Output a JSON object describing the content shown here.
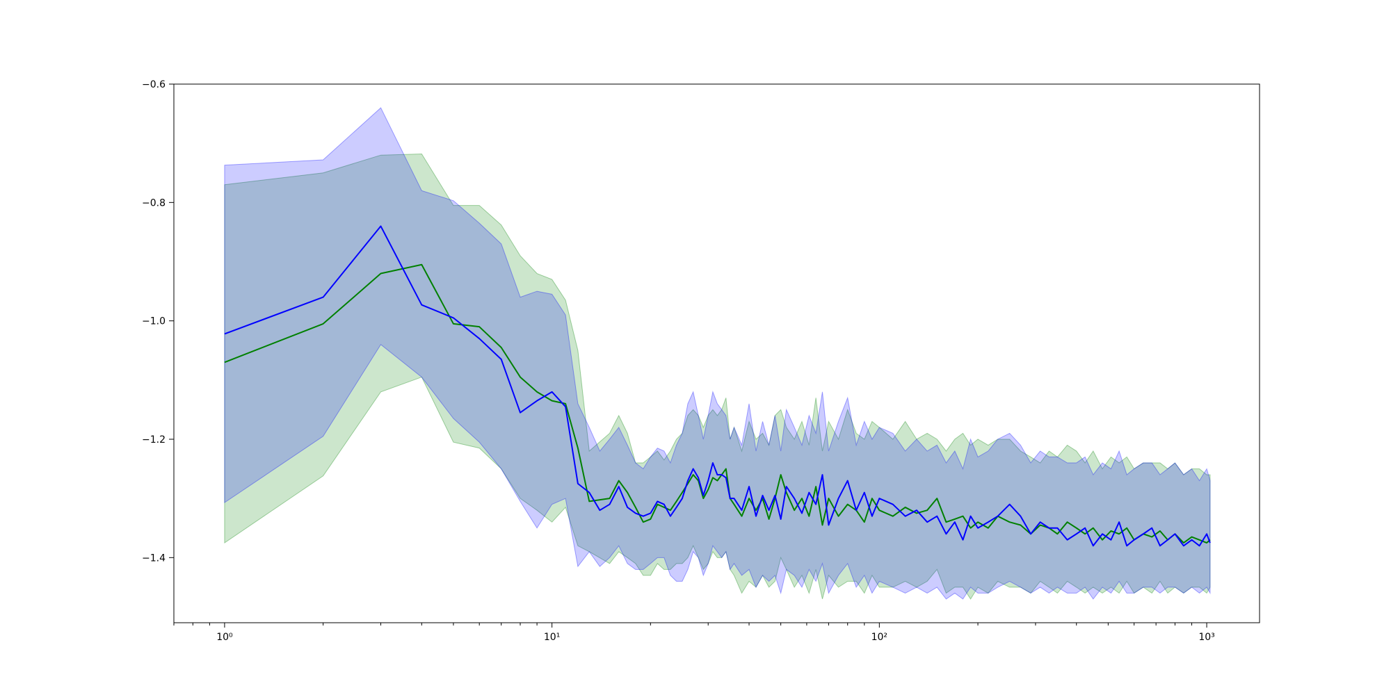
{
  "chart_data": {
    "type": "line",
    "title": "",
    "xlabel": "",
    "ylabel": "",
    "xscale": "log",
    "xlim": [
      0.7,
      1450
    ],
    "ylim": [
      -1.51,
      -0.6
    ],
    "grid": false,
    "x_ticks": [
      {
        "value": 1,
        "label": "10⁰"
      },
      {
        "value": 10,
        "label": "10¹"
      },
      {
        "value": 100,
        "label": "10²"
      },
      {
        "value": 1000,
        "label": "10³"
      }
    ],
    "y_ticks": [
      {
        "value": -0.6,
        "label": "−0.6"
      },
      {
        "value": -0.8,
        "label": "−0.8"
      },
      {
        "value": -1.0,
        "label": "−1.0"
      },
      {
        "value": -1.2,
        "label": "−1.2"
      },
      {
        "value": -1.4,
        "label": "−1.4"
      }
    ],
    "series": [
      {
        "color": "#008000",
        "band_color": "#008000",
        "band_opacity": 0.2,
        "x": [
          1,
          2,
          3,
          4,
          5,
          6,
          7,
          8,
          9,
          10,
          11,
          12,
          13,
          15,
          16,
          17,
          18,
          19,
          20,
          21,
          22,
          23,
          24,
          25,
          26,
          27,
          28,
          29,
          30,
          31,
          32,
          33,
          34,
          35,
          36,
          38,
          40,
          42,
          44,
          46,
          48,
          50,
          52,
          55,
          58,
          61,
          64,
          67,
          70,
          75,
          80,
          85,
          90,
          95,
          100,
          110,
          120,
          130,
          140,
          150,
          160,
          170,
          180,
          190,
          200,
          215,
          230,
          250,
          270,
          290,
          310,
          330,
          350,
          375,
          400,
          425,
          450,
          480,
          510,
          540,
          570,
          600,
          640,
          680,
          720,
          760,
          800,
          850,
          900,
          950,
          1000,
          1024
        ],
        "mean": [
          -1.07,
          -1.005,
          -0.92,
          -0.905,
          -1.005,
          -1.01,
          -1.045,
          -1.095,
          -1.12,
          -1.135,
          -1.14,
          -1.215,
          -1.305,
          -1.3,
          -1.27,
          -1.29,
          -1.315,
          -1.34,
          -1.335,
          -1.31,
          -1.315,
          -1.32,
          -1.305,
          -1.29,
          -1.275,
          -1.26,
          -1.27,
          -1.3,
          -1.285,
          -1.265,
          -1.27,
          -1.26,
          -1.25,
          -1.3,
          -1.31,
          -1.33,
          -1.3,
          -1.32,
          -1.3,
          -1.335,
          -1.3,
          -1.26,
          -1.29,
          -1.32,
          -1.3,
          -1.33,
          -1.28,
          -1.345,
          -1.3,
          -1.33,
          -1.31,
          -1.32,
          -1.34,
          -1.3,
          -1.32,
          -1.33,
          -1.315,
          -1.325,
          -1.32,
          -1.3,
          -1.34,
          -1.335,
          -1.33,
          -1.35,
          -1.34,
          -1.35,
          -1.33,
          -1.34,
          -1.345,
          -1.36,
          -1.345,
          -1.35,
          -1.36,
          -1.34,
          -1.35,
          -1.36,
          -1.35,
          -1.37,
          -1.355,
          -1.36,
          -1.35,
          -1.37,
          -1.36,
          -1.365,
          -1.355,
          -1.37,
          -1.36,
          -1.375,
          -1.365,
          -1.37,
          -1.375,
          -1.37
        ],
        "upper": [
          -0.77,
          -0.75,
          -0.72,
          -0.718,
          -0.805,
          -0.805,
          -0.838,
          -0.89,
          -0.92,
          -0.93,
          -0.965,
          -1.05,
          -1.22,
          -1.19,
          -1.16,
          -1.19,
          -1.24,
          -1.24,
          -1.23,
          -1.22,
          -1.235,
          -1.22,
          -1.2,
          -1.19,
          -1.16,
          -1.15,
          -1.16,
          -1.18,
          -1.16,
          -1.15,
          -1.16,
          -1.15,
          -1.13,
          -1.2,
          -1.18,
          -1.22,
          -1.17,
          -1.2,
          -1.19,
          -1.21,
          -1.16,
          -1.15,
          -1.18,
          -1.2,
          -1.17,
          -1.21,
          -1.13,
          -1.22,
          -1.17,
          -1.2,
          -1.15,
          -1.19,
          -1.2,
          -1.17,
          -1.18,
          -1.2,
          -1.17,
          -1.2,
          -1.19,
          -1.2,
          -1.22,
          -1.2,
          -1.19,
          -1.21,
          -1.2,
          -1.21,
          -1.2,
          -1.2,
          -1.22,
          -1.23,
          -1.24,
          -1.22,
          -1.23,
          -1.21,
          -1.22,
          -1.24,
          -1.22,
          -1.25,
          -1.23,
          -1.24,
          -1.23,
          -1.25,
          -1.24,
          -1.24,
          -1.24,
          -1.25,
          -1.24,
          -1.26,
          -1.25,
          -1.25,
          -1.26,
          -1.26
        ],
        "lower": [
          -1.375,
          -1.262,
          -1.12,
          -1.095,
          -1.205,
          -1.215,
          -1.25,
          -1.3,
          -1.32,
          -1.34,
          -1.315,
          -1.38,
          -1.39,
          -1.41,
          -1.39,
          -1.4,
          -1.41,
          -1.43,
          -1.43,
          -1.41,
          -1.42,
          -1.42,
          -1.41,
          -1.41,
          -1.4,
          -1.38,
          -1.4,
          -1.42,
          -1.41,
          -1.39,
          -1.4,
          -1.4,
          -1.39,
          -1.42,
          -1.43,
          -1.46,
          -1.44,
          -1.45,
          -1.43,
          -1.45,
          -1.44,
          -1.4,
          -1.42,
          -1.45,
          -1.43,
          -1.46,
          -1.42,
          -1.47,
          -1.43,
          -1.45,
          -1.44,
          -1.44,
          -1.46,
          -1.43,
          -1.45,
          -1.45,
          -1.44,
          -1.45,
          -1.44,
          -1.42,
          -1.46,
          -1.45,
          -1.45,
          -1.47,
          -1.45,
          -1.46,
          -1.44,
          -1.45,
          -1.45,
          -1.46,
          -1.44,
          -1.45,
          -1.46,
          -1.44,
          -1.45,
          -1.46,
          -1.45,
          -1.46,
          -1.45,
          -1.46,
          -1.44,
          -1.46,
          -1.45,
          -1.46,
          -1.44,
          -1.46,
          -1.45,
          -1.46,
          -1.45,
          -1.45,
          -1.46,
          -1.45
        ]
      },
      {
        "color": "#0000ff",
        "band_color": "#0000ff",
        "band_opacity": 0.2,
        "x": [
          1,
          2,
          3,
          4,
          5,
          6,
          7,
          8,
          9,
          10,
          11,
          12,
          13,
          14,
          15,
          16,
          17,
          18,
          19,
          20,
          21,
          22,
          23,
          24,
          25,
          26,
          27,
          28,
          29,
          30,
          31,
          32,
          33,
          34,
          35,
          36,
          38,
          40,
          42,
          44,
          46,
          48,
          50,
          52,
          55,
          58,
          61,
          64,
          67,
          70,
          75,
          80,
          85,
          90,
          95,
          100,
          110,
          120,
          130,
          140,
          150,
          160,
          170,
          180,
          190,
          200,
          215,
          230,
          250,
          270,
          290,
          310,
          330,
          350,
          375,
          400,
          425,
          450,
          480,
          510,
          540,
          570,
          600,
          640,
          680,
          720,
          760,
          800,
          850,
          900,
          950,
          1000,
          1024
        ],
        "mean": [
          -1.022,
          -0.96,
          -0.84,
          -0.973,
          -0.995,
          -1.03,
          -1.065,
          -1.155,
          -1.135,
          -1.12,
          -1.145,
          -1.275,
          -1.29,
          -1.32,
          -1.31,
          -1.28,
          -1.315,
          -1.325,
          -1.33,
          -1.325,
          -1.305,
          -1.31,
          -1.33,
          -1.315,
          -1.3,
          -1.27,
          -1.25,
          -1.265,
          -1.295,
          -1.27,
          -1.24,
          -1.26,
          -1.26,
          -1.265,
          -1.3,
          -1.3,
          -1.32,
          -1.28,
          -1.33,
          -1.295,
          -1.32,
          -1.295,
          -1.335,
          -1.28,
          -1.3,
          -1.325,
          -1.29,
          -1.31,
          -1.26,
          -1.345,
          -1.3,
          -1.27,
          -1.32,
          -1.29,
          -1.33,
          -1.3,
          -1.31,
          -1.33,
          -1.32,
          -1.34,
          -1.33,
          -1.36,
          -1.34,
          -1.37,
          -1.33,
          -1.35,
          -1.34,
          -1.33,
          -1.31,
          -1.33,
          -1.36,
          -1.34,
          -1.35,
          -1.35,
          -1.37,
          -1.36,
          -1.35,
          -1.38,
          -1.36,
          -1.37,
          -1.34,
          -1.38,
          -1.37,
          -1.36,
          -1.35,
          -1.38,
          -1.37,
          -1.36,
          -1.38,
          -1.37,
          -1.38,
          -1.36,
          -1.375
        ],
        "upper": [
          -0.737,
          -0.728,
          -0.64,
          -0.78,
          -0.797,
          -0.835,
          -0.87,
          -0.96,
          -0.95,
          -0.955,
          -0.99,
          -1.14,
          -1.18,
          -1.22,
          -1.2,
          -1.18,
          -1.21,
          -1.24,
          -1.25,
          -1.23,
          -1.215,
          -1.22,
          -1.24,
          -1.21,
          -1.19,
          -1.14,
          -1.12,
          -1.16,
          -1.2,
          -1.16,
          -1.12,
          -1.14,
          -1.15,
          -1.16,
          -1.2,
          -1.18,
          -1.21,
          -1.14,
          -1.22,
          -1.17,
          -1.21,
          -1.16,
          -1.22,
          -1.15,
          -1.18,
          -1.21,
          -1.16,
          -1.19,
          -1.12,
          -1.22,
          -1.17,
          -1.13,
          -1.21,
          -1.17,
          -1.2,
          -1.18,
          -1.19,
          -1.22,
          -1.2,
          -1.22,
          -1.21,
          -1.24,
          -1.22,
          -1.25,
          -1.2,
          -1.23,
          -1.22,
          -1.2,
          -1.19,
          -1.21,
          -1.24,
          -1.22,
          -1.23,
          -1.23,
          -1.24,
          -1.24,
          -1.23,
          -1.26,
          -1.24,
          -1.25,
          -1.22,
          -1.26,
          -1.25,
          -1.24,
          -1.24,
          -1.26,
          -1.25,
          -1.24,
          -1.26,
          -1.25,
          -1.27,
          -1.25,
          -1.27
        ],
        "lower": [
          -1.307,
          -1.195,
          -1.04,
          -1.095,
          -1.165,
          -1.205,
          -1.25,
          -1.305,
          -1.35,
          -1.31,
          -1.3,
          -1.415,
          -1.39,
          -1.415,
          -1.4,
          -1.38,
          -1.41,
          -1.42,
          -1.42,
          -1.41,
          -1.4,
          -1.4,
          -1.43,
          -1.44,
          -1.44,
          -1.42,
          -1.39,
          -1.4,
          -1.43,
          -1.41,
          -1.38,
          -1.39,
          -1.4,
          -1.39,
          -1.42,
          -1.41,
          -1.43,
          -1.42,
          -1.45,
          -1.43,
          -1.44,
          -1.43,
          -1.46,
          -1.42,
          -1.43,
          -1.45,
          -1.42,
          -1.44,
          -1.41,
          -1.46,
          -1.43,
          -1.41,
          -1.45,
          -1.43,
          -1.46,
          -1.44,
          -1.45,
          -1.46,
          -1.45,
          -1.46,
          -1.45,
          -1.47,
          -1.46,
          -1.47,
          -1.45,
          -1.46,
          -1.46,
          -1.45,
          -1.44,
          -1.45,
          -1.46,
          -1.45,
          -1.46,
          -1.45,
          -1.46,
          -1.46,
          -1.45,
          -1.47,
          -1.45,
          -1.46,
          -1.44,
          -1.46,
          -1.46,
          -1.45,
          -1.45,
          -1.46,
          -1.45,
          -1.45,
          -1.46,
          -1.45,
          -1.46,
          -1.45,
          -1.46
        ]
      }
    ]
  }
}
